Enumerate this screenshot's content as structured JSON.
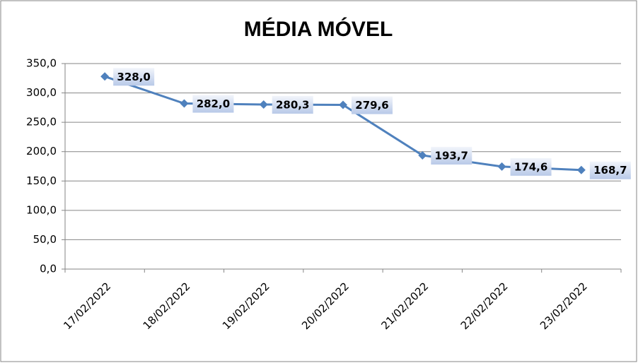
{
  "chart_data": {
    "type": "line",
    "title": "MÉDIA MÓVEL",
    "categories": [
      "17/02/2022",
      "18/02/2022",
      "19/02/2022",
      "20/02/2022",
      "21/02/2022",
      "22/02/2022",
      "23/02/2022"
    ],
    "series": [
      {
        "color": "#4f81bd",
        "values": [
          328.0,
          282.0,
          280.3,
          279.6,
          193.7,
          174.6,
          168.7
        ],
        "value_labels": [
          "328,0",
          "282,0",
          "280,3",
          "279,6",
          "193,7",
          "174,6",
          "168,7"
        ]
      }
    ],
    "ylim": [
      0,
      350
    ],
    "yticks": [
      {
        "value": 0,
        "label": "0,0"
      },
      {
        "value": 50,
        "label": "50,0"
      },
      {
        "value": 100,
        "label": "100,0"
      },
      {
        "value": 150,
        "label": "150,0"
      },
      {
        "value": 200,
        "label": "200,0"
      },
      {
        "value": 250,
        "label": "250,0"
      },
      {
        "value": 300,
        "label": "300,0"
      },
      {
        "value": 350,
        "label": "350,0"
      }
    ],
    "grid": true
  }
}
